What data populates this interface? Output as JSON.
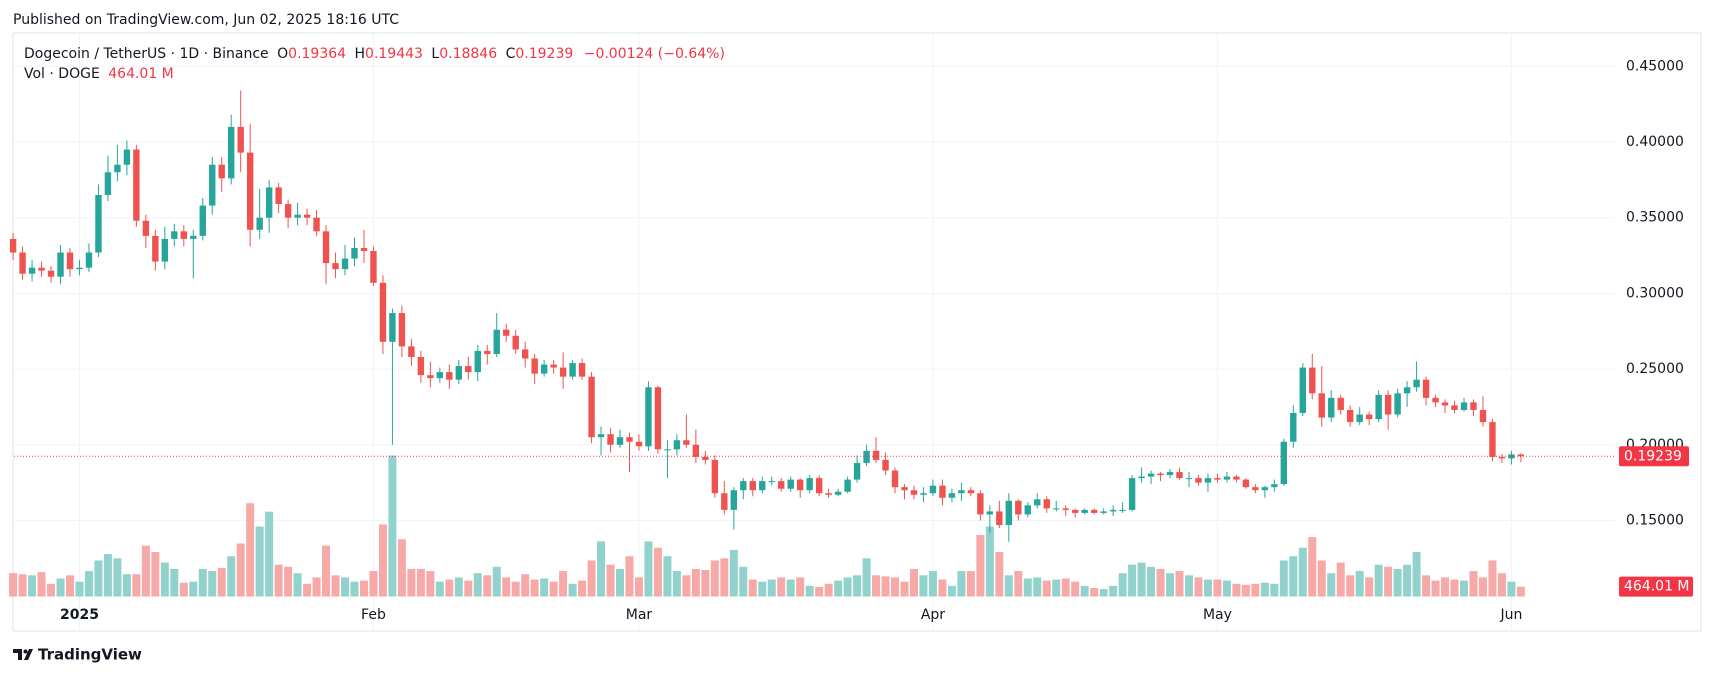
{
  "page": {
    "published": "Published on TradingView.com, Jun 02, 2025 18:16 UTC",
    "brand": "TradingView"
  },
  "chart_data": {
    "type": "candlestick",
    "title": "Dogecoin / TetherUS · 1D · Binance",
    "ohlc_labels": [
      "O",
      "H",
      "L",
      "C"
    ],
    "change_label": "−0.00124 (−0.64%)",
    "volume_title": "Vol · DOGE",
    "volume_label": "464.01 M",
    "up_color": "#26a69a",
    "down_color": "#ef5350",
    "volume_up_color": "#92d2cc",
    "volume_down_color": "#f7a9a7",
    "last_price_color": "#f23645",
    "grid": true,
    "ylim": [
      0.077,
      0.472
    ],
    "yticks": [
      {
        "value": 0.15,
        "label": "0.15000"
      },
      {
        "value": 0.2,
        "label": "0.20000"
      },
      {
        "value": 0.25,
        "label": "0.25000"
      },
      {
        "value": 0.3,
        "label": "0.30000"
      },
      {
        "value": 0.35,
        "label": "0.35000"
      },
      {
        "value": 0.4,
        "label": "0.40000"
      },
      {
        "value": 0.45,
        "label": "0.45000"
      }
    ],
    "categories": [
      null,
      null,
      null,
      null,
      null,
      null,
      null,
      "2025",
      null,
      null,
      null,
      null,
      null,
      null,
      null,
      null,
      null,
      null,
      null,
      null,
      null,
      null,
      null,
      null,
      null,
      null,
      null,
      null,
      null,
      null,
      null,
      null,
      null,
      null,
      null,
      null,
      null,
      null,
      "Feb",
      null,
      null,
      null,
      null,
      null,
      null,
      null,
      null,
      null,
      null,
      null,
      null,
      null,
      null,
      null,
      null,
      null,
      null,
      null,
      null,
      null,
      null,
      null,
      null,
      null,
      null,
      null,
      "Mar",
      null,
      null,
      null,
      null,
      null,
      null,
      null,
      null,
      null,
      null,
      null,
      null,
      null,
      null,
      null,
      null,
      null,
      null,
      null,
      null,
      null,
      null,
      null,
      null,
      null,
      null,
      null,
      null,
      null,
      null,
      "Apr",
      null,
      null,
      null,
      null,
      null,
      null,
      null,
      null,
      null,
      null,
      null,
      null,
      null,
      null,
      null,
      null,
      null,
      null,
      null,
      null,
      null,
      null,
      null,
      null,
      null,
      null,
      null,
      null,
      null,
      "May",
      null,
      null,
      null,
      null,
      null,
      null,
      null,
      null,
      null,
      null,
      null,
      null,
      null,
      null,
      null,
      null,
      null,
      null,
      null,
      null,
      null,
      null,
      null,
      null,
      null,
      null,
      null,
      null,
      null,
      null,
      "Jun",
      null
    ],
    "open": [
      0.336,
      0.327,
      0.313,
      0.317,
      0.315,
      0.311,
      0.327,
      0.316,
      0.317,
      0.327,
      0.365,
      0.38,
      0.385,
      0.395,
      0.348,
      0.338,
      0.321,
      0.336,
      0.341,
      0.336,
      0.338,
      0.358,
      0.385,
      0.376,
      0.41,
      0.393,
      0.342,
      0.35,
      0.37,
      0.359,
      0.35,
      0.352,
      0.35,
      0.341,
      0.32,
      0.316,
      0.323,
      0.33,
      0.328,
      0.307,
      0.268,
      0.287,
      0.265,
      0.258,
      0.246,
      0.244,
      0.248,
      0.243,
      0.252,
      0.248,
      0.262,
      0.26,
      0.276,
      0.272,
      0.263,
      0.257,
      0.247,
      0.253,
      0.251,
      0.245,
      0.254,
      0.245,
      0.205,
      0.207,
      0.2,
      0.205,
      0.202,
      0.199,
      0.238,
      0.197,
      0.197,
      0.203,
      0.2,
      0.192,
      0.19,
      0.168,
      0.157,
      0.17,
      0.176,
      0.17,
      0.176,
      0.176,
      0.171,
      0.177,
      0.17,
      0.178,
      0.168,
      0.167,
      0.169,
      0.177,
      0.188,
      0.196,
      0.19,
      0.183,
      0.172,
      0.17,
      0.167,
      0.168,
      0.173,
      0.165,
      0.168,
      0.17,
      0.168,
      0.154,
      0.156,
      0.147,
      0.163,
      0.154,
      0.16,
      0.164,
      0.158,
      0.158,
      0.157,
      0.155,
      0.157,
      0.155,
      0.156,
      0.157,
      0.157,
      0.178,
      0.179,
      0.181,
      0.18,
      0.182,
      0.178,
      0.178,
      0.175,
      0.178,
      0.177,
      0.179,
      0.177,
      0.172,
      0.17,
      0.172,
      0.174,
      0.202,
      0.221,
      0.251,
      0.234,
      0.218,
      0.231,
      0.223,
      0.215,
      0.22,
      0.217,
      0.233,
      0.22,
      0.234,
      0.238,
      0.243,
      0.231,
      0.228,
      0.226,
      0.223,
      0.228,
      0.223,
      0.215,
      0.192,
      0.191,
      0.19364
    ],
    "high": [
      0.34,
      0.331,
      0.322,
      0.321,
      0.318,
      0.332,
      0.33,
      0.322,
      0.333,
      0.372,
      0.391,
      0.398,
      0.401,
      0.398,
      0.352,
      0.342,
      0.344,
      0.346,
      0.345,
      0.342,
      0.363,
      0.39,
      0.39,
      0.418,
      0.434,
      0.412,
      0.369,
      0.375,
      0.373,
      0.362,
      0.36,
      0.356,
      0.355,
      0.345,
      0.327,
      0.332,
      0.337,
      0.342,
      0.331,
      0.312,
      0.29,
      0.292,
      0.27,
      0.262,
      0.255,
      0.251,
      0.253,
      0.256,
      0.258,
      0.266,
      0.266,
      0.287,
      0.28,
      0.276,
      0.268,
      0.26,
      0.256,
      0.256,
      0.261,
      0.256,
      0.257,
      0.248,
      0.212,
      0.211,
      0.21,
      0.208,
      0.207,
      0.242,
      0.239,
      0.203,
      0.207,
      0.22,
      0.21,
      0.196,
      0.193,
      0.176,
      0.172,
      0.178,
      0.178,
      0.179,
      0.179,
      0.178,
      0.179,
      0.178,
      0.18,
      0.18,
      0.171,
      0.171,
      0.179,
      0.193,
      0.2,
      0.205,
      0.195,
      0.185,
      0.174,
      0.173,
      0.172,
      0.177,
      0.177,
      0.171,
      0.175,
      0.172,
      0.17,
      0.16,
      0.163,
      0.168,
      0.164,
      0.162,
      0.168,
      0.166,
      0.163,
      0.16,
      0.158,
      0.158,
      0.158,
      0.158,
      0.16,
      0.162,
      0.18,
      0.185,
      0.183,
      0.182,
      0.184,
      0.185,
      0.182,
      0.18,
      0.181,
      0.181,
      0.182,
      0.18,
      0.178,
      0.174,
      0.173,
      0.177,
      0.204,
      0.226,
      0.254,
      0.26,
      0.252,
      0.236,
      0.233,
      0.226,
      0.225,
      0.222,
      0.236,
      0.236,
      0.237,
      0.242,
      0.255,
      0.245,
      0.233,
      0.23,
      0.229,
      0.231,
      0.23,
      0.232,
      0.217,
      0.194,
      0.196,
      0.19443
    ],
    "low": [
      0.322,
      0.309,
      0.308,
      0.311,
      0.307,
      0.306,
      0.311,
      0.312,
      0.314,
      0.324,
      0.361,
      0.374,
      0.378,
      0.344,
      0.33,
      0.315,
      0.316,
      0.331,
      0.331,
      0.31,
      0.335,
      0.352,
      0.367,
      0.372,
      0.38,
      0.331,
      0.336,
      0.34,
      0.353,
      0.343,
      0.345,
      0.345,
      0.338,
      0.306,
      0.31,
      0.312,
      0.318,
      0.32,
      0.305,
      0.26,
      0.2,
      0.258,
      0.252,
      0.241,
      0.238,
      0.241,
      0.237,
      0.24,
      0.243,
      0.242,
      0.253,
      0.258,
      0.268,
      0.26,
      0.251,
      0.24,
      0.245,
      0.247,
      0.237,
      0.243,
      0.243,
      0.201,
      0.193,
      0.195,
      0.198,
      0.182,
      0.196,
      0.196,
      0.194,
      0.178,
      0.193,
      0.198,
      0.188,
      0.187,
      0.165,
      0.154,
      0.144,
      0.164,
      0.166,
      0.168,
      0.173,
      0.169,
      0.169,
      0.165,
      0.168,
      0.166,
      0.165,
      0.166,
      0.168,
      0.175,
      0.186,
      0.188,
      0.18,
      0.168,
      0.164,
      0.164,
      0.162,
      0.166,
      0.16,
      0.162,
      0.163,
      0.166,
      0.15,
      0.142,
      0.145,
      0.136,
      0.15,
      0.152,
      0.158,
      0.155,
      0.156,
      0.153,
      0.152,
      0.154,
      0.154,
      0.154,
      0.153,
      0.155,
      0.156,
      0.175,
      0.174,
      0.176,
      0.178,
      0.177,
      0.172,
      0.173,
      0.169,
      0.175,
      0.175,
      0.175,
      0.171,
      0.168,
      0.165,
      0.169,
      0.173,
      0.198,
      0.219,
      0.23,
      0.212,
      0.215,
      0.22,
      0.212,
      0.213,
      0.213,
      0.215,
      0.21,
      0.218,
      0.225,
      0.235,
      0.226,
      0.225,
      0.221,
      0.221,
      0.222,
      0.219,
      0.212,
      0.189,
      0.188,
      0.187,
      0.18846
    ],
    "close": [
      0.327,
      0.313,
      0.317,
      0.315,
      0.311,
      0.327,
      0.316,
      0.317,
      0.327,
      0.365,
      0.38,
      0.385,
      0.395,
      0.348,
      0.338,
      0.321,
      0.336,
      0.341,
      0.336,
      0.338,
      0.358,
      0.385,
      0.376,
      0.41,
      0.393,
      0.342,
      0.35,
      0.37,
      0.359,
      0.35,
      0.352,
      0.35,
      0.341,
      0.32,
      0.316,
      0.323,
      0.33,
      0.328,
      0.307,
      0.268,
      0.287,
      0.265,
      0.258,
      0.246,
      0.244,
      0.248,
      0.243,
      0.252,
      0.248,
      0.262,
      0.26,
      0.276,
      0.272,
      0.263,
      0.257,
      0.247,
      0.253,
      0.251,
      0.245,
      0.254,
      0.245,
      0.205,
      0.207,
      0.2,
      0.205,
      0.202,
      0.199,
      0.238,
      0.197,
      0.197,
      0.203,
      0.2,
      0.192,
      0.19,
      0.168,
      0.157,
      0.17,
      0.176,
      0.17,
      0.176,
      0.176,
      0.171,
      0.177,
      0.17,
      0.178,
      0.168,
      0.167,
      0.169,
      0.177,
      0.188,
      0.196,
      0.19,
      0.183,
      0.172,
      0.17,
      0.167,
      0.168,
      0.173,
      0.165,
      0.168,
      0.17,
      0.168,
      0.154,
      0.156,
      0.147,
      0.163,
      0.154,
      0.16,
      0.164,
      0.158,
      0.158,
      0.157,
      0.155,
      0.157,
      0.155,
      0.156,
      0.157,
      0.157,
      0.178,
      0.179,
      0.181,
      0.18,
      0.182,
      0.178,
      0.178,
      0.175,
      0.178,
      0.177,
      0.179,
      0.177,
      0.172,
      0.17,
      0.172,
      0.174,
      0.202,
      0.221,
      0.251,
      0.234,
      0.218,
      0.231,
      0.223,
      0.215,
      0.22,
      0.217,
      0.233,
      0.22,
      0.234,
      0.238,
      0.243,
      0.231,
      0.228,
      0.226,
      0.223,
      0.228,
      0.223,
      0.215,
      0.192,
      0.191,
      0.19364,
      0.19239
    ],
    "volume": [
      1100,
      1050,
      1000,
      1150,
      600,
      850,
      1000,
      700,
      1200,
      1700,
      2000,
      1800,
      1050,
      1050,
      2400,
      2100,
      1600,
      1300,
      650,
      700,
      1300,
      1200,
      1350,
      1900,
      2500,
      4400,
      3300,
      4000,
      1500,
      1400,
      1100,
      600,
      900,
      2400,
      1000,
      900,
      700,
      750,
      1200,
      3400,
      6650,
      2700,
      1300,
      1300,
      1200,
      700,
      800,
      900,
      750,
      1100,
      1000,
      1400,
      900,
      700,
      1050,
      800,
      850,
      700,
      1200,
      600,
      750,
      1700,
      2600,
      1500,
      1300,
      1900,
      900,
      2600,
      2300,
      1900,
      1200,
      1000,
      1300,
      1250,
      1700,
      1800,
      2200,
      1400,
      800,
      700,
      800,
      900,
      800,
      900,
      500,
      450,
      600,
      750,
      900,
      1000,
      1800,
      1000,
      950,
      900,
      700,
      1300,
      1000,
      1200,
      800,
      500,
      1200,
      1200,
      2900,
      3300,
      2100,
      1000,
      1200,
      850,
      900,
      750,
      800,
      850,
      700,
      500,
      400,
      350,
      500,
      1100,
      1500,
      1600,
      1400,
      1300,
      1100,
      1200,
      1000,
      900,
      800,
      800,
      750,
      600,
      550,
      600,
      650,
      600,
      1700,
      1900,
      2300,
      2800,
      1700,
      1100,
      1600,
      1000,
      1200,
      900,
      1500,
      1400,
      1300,
      1500,
      2100,
      1000,
      750,
      900,
      800,
      750,
      1200,
      900,
      1700,
      1100,
      700,
      464.01
    ]
  }
}
